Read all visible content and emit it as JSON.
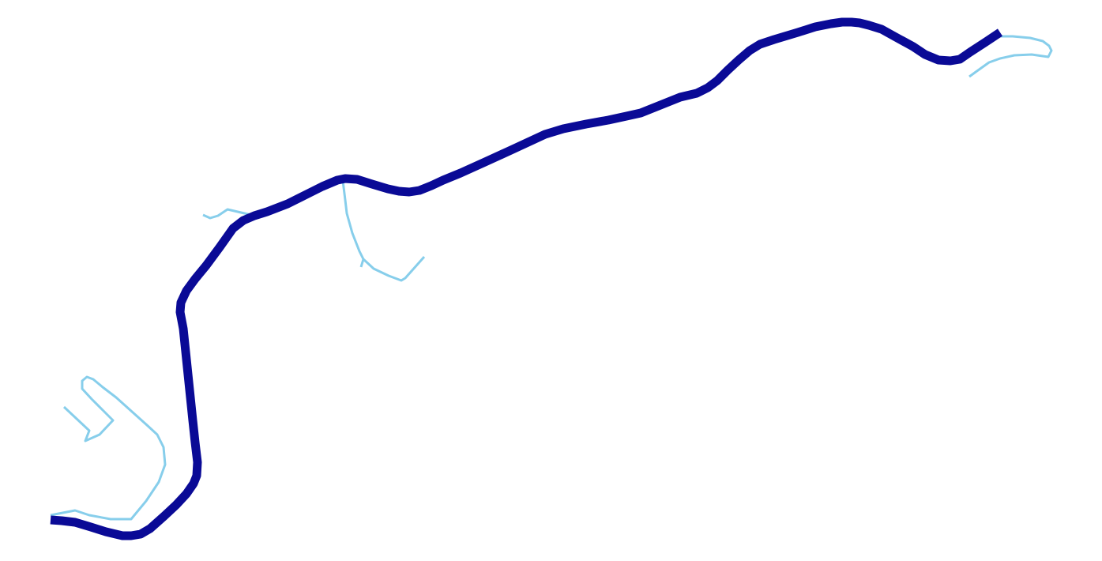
{
  "map": {
    "kind": "river-network",
    "colors": {
      "background": "#ffffff",
      "main_river": "#0a0a96",
      "tributary": "#87ceeb"
    },
    "main_river": {
      "style": "thick-dark-blue-line"
    },
    "tributaries": [
      {
        "id": "southwest-loop",
        "style": "thin-light-blue-line"
      },
      {
        "id": "southwest-spur",
        "style": "thin-light-blue-line"
      },
      {
        "id": "west-stub",
        "style": "thin-light-blue-line"
      },
      {
        "id": "central-branch",
        "style": "thin-light-blue-line"
      },
      {
        "id": "northeast-loop",
        "style": "thin-light-blue-line"
      }
    ]
  }
}
